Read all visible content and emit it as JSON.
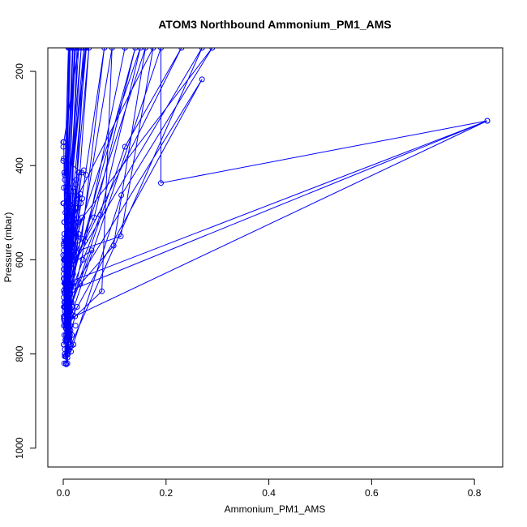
{
  "chart_data": {
    "type": "line",
    "title": "ATOM3 Northbound Ammonium_PM1_AMS",
    "xlabel": "Ammonium_PM1_AMS",
    "ylabel": "Pressure (mbar)",
    "xlim": [
      -0.03,
      0.855
    ],
    "ylim": [
      1040,
      150
    ],
    "y_reversed": true,
    "x_ticks": [
      0.0,
      0.2,
      0.4,
      0.6,
      0.8
    ],
    "x_tick_labels": [
      "0.0",
      "0.2",
      "0.4",
      "0.6",
      "0.8"
    ],
    "y_ticks": [
      200,
      400,
      600,
      800,
      1000
    ],
    "y_tick_labels": [
      "200",
      "400",
      "600",
      "800",
      "1000"
    ],
    "color": "#0000ff",
    "marker": "open-circle",
    "series": [
      {
        "values": [
          [
            0.12,
            150
          ],
          [
            0.005,
            760
          ],
          [
            0.012,
            620
          ],
          [
            0.016,
            783
          ],
          [
            0.002,
            640
          ],
          [
            0.03,
            150
          ],
          [
            0.001,
            350
          ],
          [
            0.004,
            700
          ],
          [
            0.018,
            650
          ],
          [
            0.008,
            820
          ],
          [
            0.003,
            690
          ],
          [
            0.025,
            480
          ],
          [
            0.006,
            748
          ],
          [
            0.011,
            713
          ],
          [
            0.04,
            150
          ],
          [
            0.002,
            610
          ],
          [
            0.014,
            740
          ],
          [
            0.001,
            565
          ],
          [
            0.028,
            490
          ],
          [
            0.007,
            530
          ],
          [
            0.01,
            150
          ],
          [
            0.003,
            420
          ],
          [
            0.02,
            455
          ],
          [
            0.002,
            730
          ],
          [
            0.009,
            800
          ],
          [
            0.004,
            590
          ],
          [
            0.022,
            575
          ],
          [
            0.001,
            385
          ],
          [
            0.036,
            415
          ],
          [
            0.006,
            690
          ],
          [
            0.14,
            150
          ],
          [
            0.06,
            510
          ],
          [
            0.003,
            650
          ],
          [
            0.012,
            768
          ],
          [
            0.002,
            700
          ],
          [
            0.017,
            540
          ],
          [
            0.001,
            480
          ],
          [
            0.01,
            630
          ],
          [
            0.23,
            150
          ],
          [
            0.12,
            360
          ],
          [
            0.007,
            720
          ],
          [
            0.025,
            430
          ],
          [
            0.004,
            660
          ],
          [
            0.03,
            415
          ],
          [
            0.001,
            780
          ],
          [
            0.015,
            720
          ],
          [
            0.19,
            150
          ],
          [
            0.19,
            437
          ],
          [
            0.825,
            305
          ],
          [
            0.003,
            730
          ],
          [
            0.013,
            760
          ],
          [
            0.008,
            600
          ],
          [
            0.045,
            150
          ],
          [
            0.002,
            520
          ],
          [
            0.02,
            610
          ],
          [
            0.27,
            150
          ],
          [
            0.005,
            805
          ],
          [
            0.033,
            460
          ],
          [
            0.002,
            690
          ],
          [
            0.018,
            515
          ],
          [
            0.001,
            630
          ],
          [
            0.15,
            150
          ],
          [
            0.072,
            505
          ],
          [
            0.004,
            700
          ],
          [
            0.011,
            790
          ],
          [
            0.003,
            560
          ],
          [
            0.29,
            150
          ],
          [
            0.113,
            463
          ],
          [
            0.015,
            795
          ],
          [
            0.006,
            670
          ],
          [
            0.002,
            545
          ],
          [
            0.02,
            600
          ],
          [
            0.05,
            150
          ],
          [
            0.001,
            720
          ],
          [
            0.009,
            580
          ],
          [
            0.023,
            720
          ],
          [
            0.003,
            800
          ],
          [
            0.012,
            500
          ],
          [
            0.175,
            150
          ],
          [
            0.112,
            550
          ],
          [
            0.004,
            590
          ],
          [
            0.016,
            575
          ],
          [
            0.001,
            447
          ],
          [
            0.028,
            520
          ],
          [
            0.008,
            680
          ],
          [
            0.27,
            217
          ],
          [
            0.005,
            745
          ],
          [
            0.095,
            150
          ],
          [
            0.075,
            667
          ],
          [
            0.004,
            740
          ],
          [
            0.01,
            640
          ],
          [
            0.002,
            555
          ],
          [
            0.035,
            150
          ],
          [
            0.001,
            680
          ],
          [
            0.018,
            700
          ],
          [
            0.003,
            805
          ],
          [
            0.007,
            560
          ],
          [
            0.022,
            150
          ],
          [
            0.001,
            570
          ],
          [
            0.014,
            780
          ],
          [
            0.002,
            700
          ],
          [
            0.011,
            500
          ],
          [
            0.005,
            820
          ],
          [
            0.009,
            660
          ],
          [
            0.16,
            150
          ],
          [
            0.098,
            570
          ],
          [
            0.003,
            690
          ],
          [
            0.021,
            480
          ],
          [
            0.006,
            640
          ],
          [
            0.037,
            510
          ],
          [
            0.002,
            600
          ],
          [
            0.018,
            150
          ],
          [
            0.001,
            700
          ],
          [
            0.013,
            600
          ],
          [
            0.003,
            720
          ],
          [
            0.008,
            790
          ],
          [
            0.027,
            150
          ],
          [
            0.004,
            770
          ],
          [
            0.014,
            660
          ],
          [
            0.001,
            600
          ],
          [
            0.043,
            150
          ],
          [
            0.006,
            740
          ],
          [
            0.002,
            620
          ],
          [
            0.055,
            580
          ],
          [
            0.001,
            740
          ],
          [
            0.03,
            545
          ],
          [
            0.011,
            730
          ],
          [
            0.003,
            670
          ],
          [
            0.825,
            305
          ],
          [
            0.005,
            650
          ],
          [
            0.012,
            150
          ],
          [
            0.002,
            520
          ],
          [
            0.014,
            150
          ],
          [
            0.001,
            640
          ],
          [
            0.009,
            750
          ],
          [
            0.003,
            710
          ],
          [
            0.08,
            150
          ],
          [
            0.036,
            555
          ],
          [
            0.002,
            650
          ],
          [
            0.017,
            760
          ],
          [
            0.004,
            600
          ],
          [
            0.024,
            150
          ],
          [
            0.001,
            665
          ],
          [
            0.007,
            800
          ],
          [
            0.001,
            620
          ],
          [
            0.019,
            150
          ],
          [
            0.002,
            670
          ],
          [
            0.024,
            150
          ]
        ]
      }
    ],
    "scattered_points": [
      [
        0.0,
        350
      ],
      [
        0.0,
        360
      ],
      [
        0.0,
        390
      ],
      [
        0.002,
        415
      ],
      [
        0.003,
        430
      ],
      [
        0.006,
        445
      ],
      [
        0.0,
        480
      ],
      [
        0.004,
        500
      ],
      [
        0.002,
        520
      ],
      [
        0.005,
        560
      ],
      [
        0.001,
        580
      ],
      [
        0.0,
        590
      ],
      [
        0.003,
        600
      ],
      [
        0.006,
        610
      ],
      [
        0.01,
        615
      ],
      [
        0.001,
        640
      ],
      [
        0.004,
        650
      ],
      [
        0.007,
        655
      ],
      [
        0.012,
        665
      ],
      [
        0.002,
        700
      ],
      [
        0.008,
        710
      ],
      [
        0.015,
        715
      ],
      [
        0.001,
        725
      ],
      [
        0.005,
        735
      ],
      [
        0.009,
        745
      ],
      [
        0.014,
        750
      ],
      [
        0.002,
        760
      ],
      [
        0.006,
        770
      ],
      [
        0.017,
        760
      ],
      [
        0.001,
        780
      ],
      [
        0.003,
        790
      ],
      [
        0.01,
        795
      ],
      [
        0.005,
        805
      ],
      [
        0.008,
        808
      ],
      [
        0.002,
        820
      ],
      [
        0.006,
        822
      ],
      [
        0.02,
        780
      ],
      [
        0.024,
        740
      ],
      [
        0.027,
        700
      ],
      [
        0.033,
        650
      ],
      [
        0.038,
        600
      ],
      [
        0.042,
        560
      ],
      [
        0.03,
        520
      ],
      [
        0.034,
        480
      ],
      [
        0.024,
        440
      ],
      [
        0.04,
        410
      ],
      [
        0.045,
        420
      ],
      [
        0.037,
        470
      ],
      [
        0.028,
        560
      ],
      [
        0.021,
        590
      ],
      [
        0.019,
        630
      ],
      [
        0.016,
        690
      ],
      [
        0.013,
        710
      ],
      [
        0.011,
        740
      ]
    ]
  }
}
